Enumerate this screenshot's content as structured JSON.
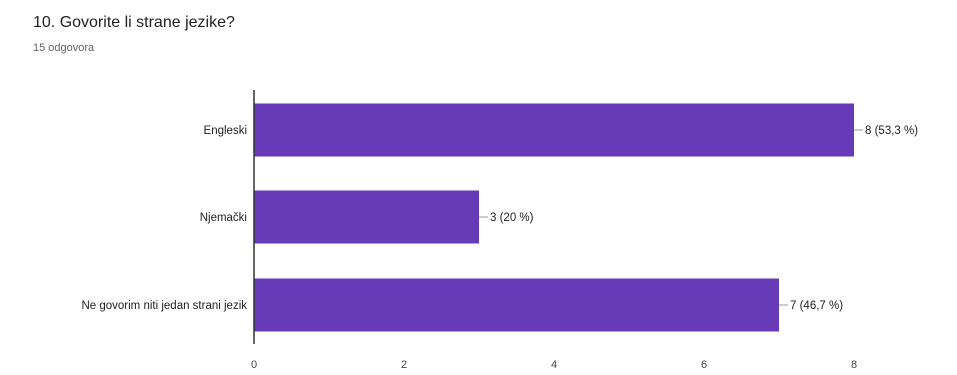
{
  "question": {
    "title": "10. Govorite li strane jezike?",
    "responses": "15 odgovora"
  },
  "colors": {
    "bar": "#673ab7",
    "axis": "#333333",
    "leader": "#999999"
  },
  "chart_data": {
    "type": "bar",
    "orientation": "horizontal",
    "categories": [
      "Engleski",
      "Njemački",
      "Ne govorim niti jedan strani jezik"
    ],
    "values": [
      8,
      3,
      7
    ],
    "data_labels": [
      "8 (53,3 %)",
      "3 (20 %)",
      "7 (46,7 %)"
    ],
    "xlim": [
      0,
      8
    ],
    "x_ticks": [
      "0",
      "2",
      "4",
      "6",
      "8"
    ],
    "grid": false,
    "legend": "none"
  }
}
